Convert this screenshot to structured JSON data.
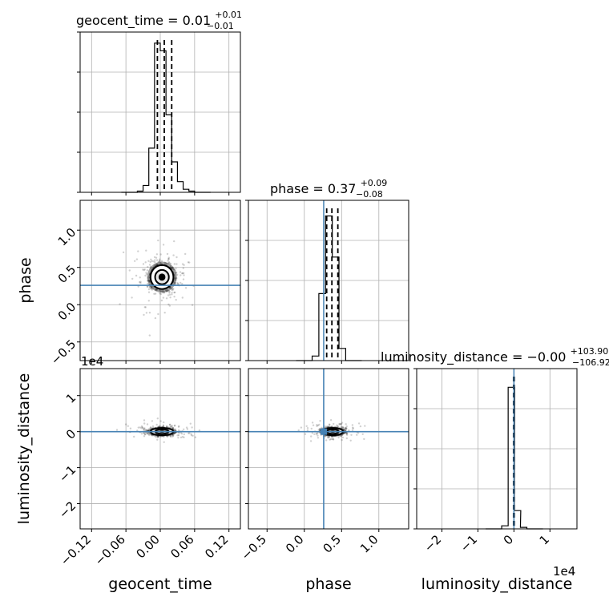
{
  "chart_data": [
    {
      "type": "histogram",
      "panel": "geocent_time-marginal",
      "title": {
        "param": "geocent_time",
        "median": "0.01",
        "upper": "+0.01",
        "lower": "−0.01"
      },
      "x_range": [
        -0.14,
        0.14
      ],
      "y_ticks": "unlabeled",
      "quantiles": [
        -0.005,
        0.007,
        0.02
      ],
      "bins": [
        {
          "x": -0.035,
          "h": 0.008
        },
        {
          "x": -0.025,
          "h": 0.045
        },
        {
          "x": -0.015,
          "h": 0.29
        },
        {
          "x": -0.005,
          "h": 0.98
        },
        {
          "x": 0.005,
          "h": 0.93
        },
        {
          "x": 0.015,
          "h": 0.51
        },
        {
          "x": 0.025,
          "h": 0.2
        },
        {
          "x": 0.035,
          "h": 0.07
        },
        {
          "x": 0.045,
          "h": 0.02
        },
        {
          "x": 0.055,
          "h": 0.008
        }
      ]
    },
    {
      "type": "histogram",
      "panel": "phase-marginal",
      "title": {
        "param": "phase",
        "median": "0.37",
        "upper": "+0.09",
        "lower": "−0.08"
      },
      "x_range": [
        -0.75,
        1.4
      ],
      "truth": 0.26,
      "quantiles": [
        0.3,
        0.37,
        0.45
      ],
      "bins": [
        {
          "x": 0.15,
          "h": 0.03
        },
        {
          "x": 0.24,
          "h": 0.44
        },
        {
          "x": 0.33,
          "h": 0.95
        },
        {
          "x": 0.42,
          "h": 0.68
        },
        {
          "x": 0.51,
          "h": 0.08
        }
      ]
    },
    {
      "type": "histogram",
      "panel": "luminosity_distance-marginal",
      "title": {
        "param": "luminosity_distance",
        "median": "−0.00",
        "upper": "+103.90",
        "lower": "−106.92"
      },
      "x_range": [
        -2.7,
        1.75
      ],
      "x_scale": "1e4",
      "quantiles": [
        -0.0107,
        0.0,
        0.0104
      ],
      "bins": [
        {
          "x": -0.25,
          "h": 0.02
        },
        {
          "x": -0.07,
          "h": 0.93
        },
        {
          "x": 0.1,
          "h": 0.12
        },
        {
          "x": 0.27,
          "h": 0.01
        }
      ]
    },
    {
      "type": "scatter",
      "panel": "phase-vs-geocent_time",
      "x_param": "geocent_time",
      "y_param": "phase",
      "x_range": [
        -0.14,
        0.14
      ],
      "y_range": [
        -0.75,
        1.4
      ],
      "truth": {
        "y": 0.26
      },
      "center": {
        "x": 0.003,
        "y": 0.37
      }
    },
    {
      "type": "scatter",
      "panel": "luminosity_distance-vs-geocent_time",
      "x_param": "geocent_time",
      "y_param": "luminosity_distance",
      "x_range": [
        -0.14,
        0.14
      ],
      "y_range": [
        -2.7,
        1.75
      ],
      "truth": {
        "y": 0.0
      },
      "center": {
        "x": 0.003,
        "y": 0.0
      }
    },
    {
      "type": "scatter",
      "panel": "luminosity_distance-vs-phase",
      "x_param": "phase",
      "y_param": "luminosity_distance",
      "x_range": [
        -0.75,
        1.4
      ],
      "y_range": [
        -2.7,
        1.75
      ],
      "truth": {
        "x": 0.26,
        "y": 0.0
      },
      "center": {
        "x": 0.38,
        "y": 0.0
      }
    }
  ],
  "axes": {
    "geocent_time": {
      "label": "geocent_time",
      "ticks": [
        "−0.12",
        "−0.06",
        "0.00",
        "0.06",
        "0.12"
      ]
    },
    "phase": {
      "label": "phase",
      "ticks": [
        "−0.5",
        "0.0",
        "0.5",
        "1.0"
      ]
    },
    "luminosity_distance": {
      "label": "luminosity_distance",
      "ticks": [
        "−2",
        "−1",
        "0",
        "1"
      ],
      "offset": "1e4"
    }
  },
  "colors": {
    "truth": "#4682b4",
    "contour": "#000000",
    "points": "#000000",
    "grid": "#b0b0b0"
  }
}
